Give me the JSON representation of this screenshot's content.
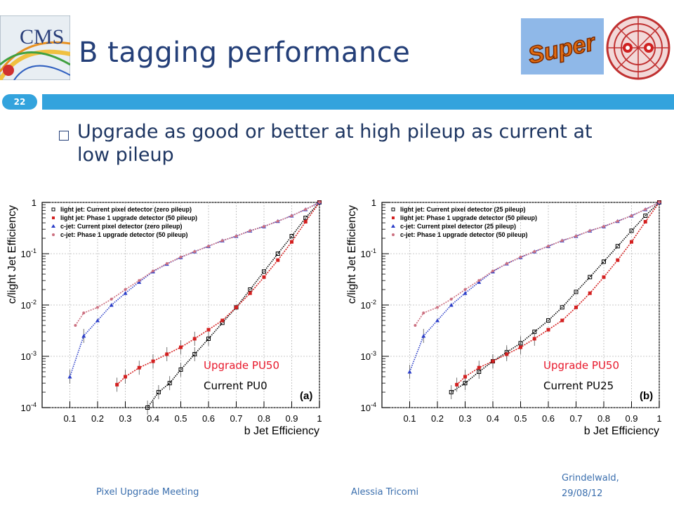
{
  "slide": {
    "title": "B tagging performance",
    "page_number": "22",
    "bullet": "Upgrade as good or better at high pileup as current at low pileup"
  },
  "footer": {
    "meeting": "Pixel Upgrade Meeting",
    "author": "Alessia Tricomi",
    "place": "Grindelwald,",
    "date": "29/08/12"
  },
  "logos": {
    "cms": "CMS",
    "super": "Super"
  },
  "colors": {
    "title": "#243f78",
    "accent_bar": "#33a3dd",
    "footer": "#3b6fae",
    "annotation_upgrade": "#e8192c",
    "light_current": "#000000",
    "light_upgrade": "#d42020",
    "c_current": "#2b3ec8",
    "c_upgrade": "#cc7080"
  },
  "chart_data": [
    {
      "type": "scatter",
      "panel_label": "(a)",
      "xlabel": "b Jet Efficiency",
      "ylabel": "c/light Jet Efficiency",
      "xlim": [
        0,
        1
      ],
      "ylim": [
        0.0001,
        1
      ],
      "y_scale": "log",
      "grid": true,
      "legend_position": "top-left",
      "x_ticks": [
        "0.1",
        "0.2",
        "0.3",
        "0.4",
        "0.5",
        "0.6",
        "0.7",
        "0.8",
        "0.9",
        "1"
      ],
      "y_ticks": [
        "1",
        "10^-1",
        "10^-2",
        "10^-3",
        "10^-4"
      ],
      "annotations": [
        "Upgrade PU50",
        "Current PU0"
      ],
      "series": [
        {
          "name": "light jet: Current pixel detector (zero pileup)",
          "marker": "open-square",
          "color": "#000000",
          "x": [
            0.38,
            0.42,
            0.46,
            0.5,
            0.55,
            0.6,
            0.65,
            0.7,
            0.75,
            0.8,
            0.85,
            0.9,
            0.95,
            1.0
          ],
          "y": [
            0.0001,
            0.0002,
            0.0003,
            0.00055,
            0.0011,
            0.0022,
            0.0045,
            0.009,
            0.02,
            0.045,
            0.1,
            0.22,
            0.5,
            1.0
          ]
        },
        {
          "name": "light jet: Phase 1 upgrade detector (50 pileup)",
          "marker": "filled-square",
          "color": "#d42020",
          "x": [
            0.27,
            0.3,
            0.35,
            0.4,
            0.45,
            0.5,
            0.55,
            0.6,
            0.65,
            0.7,
            0.75,
            0.8,
            0.85,
            0.9,
            0.95,
            1.0
          ],
          "y": [
            0.00028,
            0.0004,
            0.0006,
            0.0008,
            0.0011,
            0.0015,
            0.0022,
            0.0033,
            0.005,
            0.009,
            0.017,
            0.035,
            0.075,
            0.17,
            0.42,
            1.0
          ]
        },
        {
          "name": "c-jet: Current pixel detector (zero pileup)",
          "marker": "triangle",
          "color": "#2b3ec8",
          "x": [
            0.1,
            0.15,
            0.2,
            0.25,
            0.3,
            0.35,
            0.4,
            0.45,
            0.5,
            0.55,
            0.6,
            0.65,
            0.7,
            0.75,
            0.8,
            0.85,
            0.9,
            0.95,
            1.0
          ],
          "y": [
            0.0004,
            0.0025,
            0.005,
            0.01,
            0.017,
            0.028,
            0.045,
            0.063,
            0.085,
            0.11,
            0.14,
            0.18,
            0.22,
            0.28,
            0.34,
            0.43,
            0.55,
            0.73,
            1.0
          ]
        },
        {
          "name": "c-jet: Phase 1 upgrade detector (50 pileup)",
          "marker": "star",
          "color": "#cc7080",
          "x": [
            0.12,
            0.15,
            0.2,
            0.25,
            0.3,
            0.35,
            0.4,
            0.45,
            0.5,
            0.55,
            0.6,
            0.65,
            0.7,
            0.75,
            0.8,
            0.85,
            0.9,
            0.95,
            1.0
          ],
          "y": [
            0.004,
            0.007,
            0.009,
            0.013,
            0.02,
            0.03,
            0.046,
            0.064,
            0.086,
            0.11,
            0.14,
            0.18,
            0.22,
            0.28,
            0.34,
            0.43,
            0.55,
            0.73,
            1.0
          ]
        }
      ]
    },
    {
      "type": "scatter",
      "panel_label": "(b)",
      "xlabel": "b Jet Efficiency",
      "ylabel": "c/light Jet Efficiency",
      "xlim": [
        0,
        1
      ],
      "ylim": [
        0.0001,
        1
      ],
      "y_scale": "log",
      "grid": true,
      "legend_position": "top-left",
      "x_ticks": [
        "0.1",
        "0.2",
        "0.3",
        "0.4",
        "0.5",
        "0.6",
        "0.7",
        "0.8",
        "0.9",
        "1"
      ],
      "y_ticks": [
        "1",
        "10^-1",
        "10^-2",
        "10^-3",
        "10^-4"
      ],
      "annotations": [
        "Upgrade PU50",
        "Current PU25"
      ],
      "series": [
        {
          "name": "light jet: Current pixel detector (25 pileup)",
          "marker": "open-square",
          "color": "#000000",
          "x": [
            0.25,
            0.3,
            0.35,
            0.4,
            0.45,
            0.5,
            0.55,
            0.6,
            0.65,
            0.7,
            0.75,
            0.8,
            0.85,
            0.9,
            0.95,
            1.0
          ],
          "y": [
            0.0002,
            0.0003,
            0.0005,
            0.0008,
            0.0012,
            0.0018,
            0.003,
            0.005,
            0.009,
            0.018,
            0.035,
            0.07,
            0.14,
            0.28,
            0.55,
            1.0
          ]
        },
        {
          "name": "light jet: Phase 1 upgrade detector (50 pileup)",
          "marker": "filled-square",
          "color": "#d42020",
          "x": [
            0.27,
            0.3,
            0.35,
            0.4,
            0.45,
            0.5,
            0.55,
            0.6,
            0.65,
            0.7,
            0.75,
            0.8,
            0.85,
            0.9,
            0.95,
            1.0
          ],
          "y": [
            0.00028,
            0.0004,
            0.0006,
            0.0008,
            0.0011,
            0.0015,
            0.0022,
            0.0033,
            0.005,
            0.009,
            0.017,
            0.035,
            0.075,
            0.17,
            0.42,
            1.0
          ]
        },
        {
          "name": "c-jet: Current pixel detector (25 pileup)",
          "marker": "triangle",
          "color": "#2b3ec8",
          "x": [
            0.1,
            0.15,
            0.2,
            0.25,
            0.3,
            0.35,
            0.4,
            0.45,
            0.5,
            0.55,
            0.6,
            0.65,
            0.7,
            0.75,
            0.8,
            0.85,
            0.9,
            0.95,
            1.0
          ],
          "y": [
            0.0005,
            0.0025,
            0.005,
            0.01,
            0.017,
            0.028,
            0.045,
            0.064,
            0.085,
            0.11,
            0.14,
            0.18,
            0.22,
            0.28,
            0.34,
            0.43,
            0.55,
            0.73,
            1.0
          ]
        },
        {
          "name": "c-jet: Phase 1 upgrade detector (50 pileup)",
          "marker": "star",
          "color": "#cc7080",
          "x": [
            0.12,
            0.15,
            0.2,
            0.25,
            0.3,
            0.35,
            0.4,
            0.45,
            0.5,
            0.55,
            0.6,
            0.65,
            0.7,
            0.75,
            0.8,
            0.85,
            0.9,
            0.95,
            1.0
          ],
          "y": [
            0.004,
            0.007,
            0.009,
            0.013,
            0.02,
            0.03,
            0.046,
            0.064,
            0.086,
            0.11,
            0.14,
            0.18,
            0.22,
            0.28,
            0.34,
            0.43,
            0.55,
            0.73,
            1.0
          ]
        }
      ]
    }
  ]
}
